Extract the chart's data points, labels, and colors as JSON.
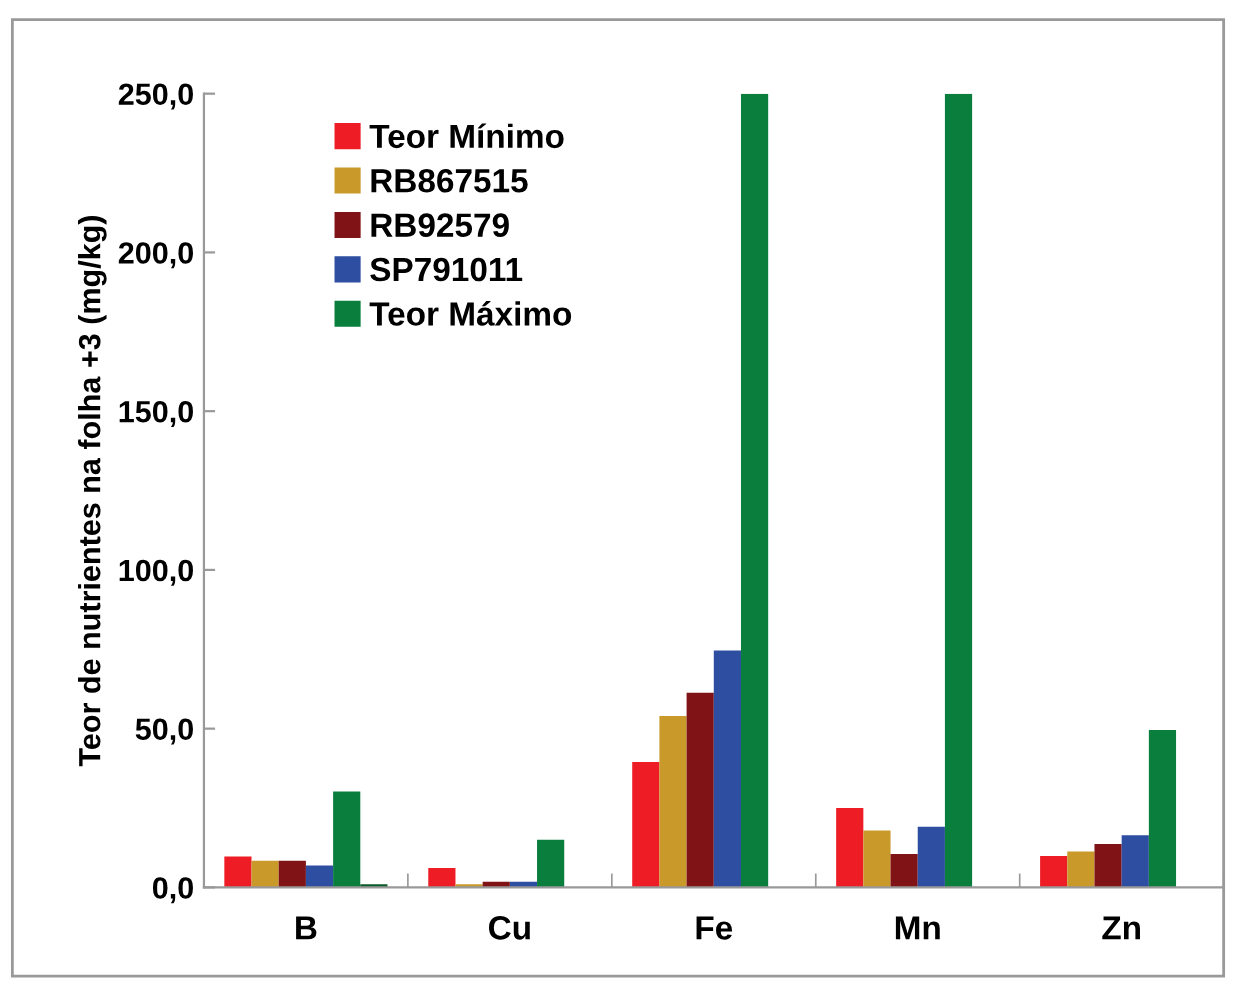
{
  "chart_data": {
    "type": "bar",
    "ylabel": "Teor de nutrientes na folha +3 (mg/kg)",
    "categories": [
      "B",
      "Cu",
      "Fe",
      "Mn",
      "Zn"
    ],
    "series": [
      {
        "name": "Teor Mínimo",
        "color": "#ee1c25",
        "values": [
          9.7,
          6.1,
          39.5,
          25,
          9.9
        ]
      },
      {
        "name": "RB867515",
        "color": "#c9992a",
        "values": [
          8.4,
          1.0,
          54,
          17.9,
          11.3
        ]
      },
      {
        "name": "RB92579",
        "color": "#7f1315",
        "values": [
          8.4,
          1.8,
          61.3,
          10.5,
          13.7
        ]
      },
      {
        "name": "SP791011",
        "color": "#2e4ea2",
        "values": [
          6.9,
          1.8,
          74.6,
          19.1,
          16.4
        ]
      },
      {
        "name": "Teor Máximo",
        "color": "#0a7f3d",
        "values": [
          30.2,
          15.0,
          250,
          250,
          49.6
        ]
      },
      {
        "color": "#0a5a2a",
        "values": [
          1.0,
          null,
          null,
          null,
          null
        ]
      }
    ],
    "ylim": [
      0,
      250
    ],
    "yticks": [
      {
        "value": 0,
        "label": "0,0"
      },
      {
        "value": 50,
        "label": "50,0"
      },
      {
        "value": 100,
        "label": "100,0"
      },
      {
        "value": 150,
        "label": "150,0"
      },
      {
        "value": 200,
        "label": "200,0"
      },
      {
        "value": 250,
        "label": "250,0"
      }
    ],
    "grid": false,
    "legend": "top left"
  }
}
